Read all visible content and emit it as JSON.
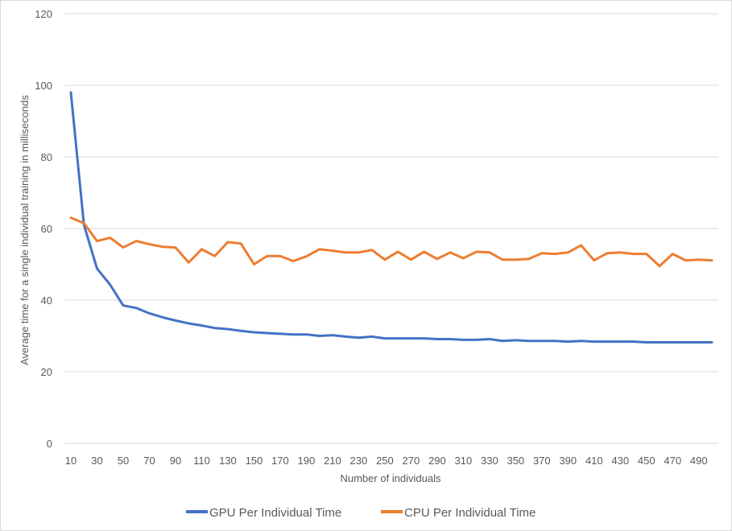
{
  "chart_data": {
    "type": "line",
    "title": "",
    "xlabel": "Number of individuals",
    "ylabel": "Average time for a single individual training in milliseconds",
    "ylim": [
      0,
      120
    ],
    "y_ticks": [
      0,
      20,
      40,
      60,
      80,
      100,
      120
    ],
    "grid": "horizontal",
    "legend_position": "bottom",
    "x": [
      10,
      20,
      30,
      40,
      50,
      60,
      70,
      80,
      90,
      100,
      110,
      120,
      130,
      140,
      150,
      160,
      170,
      180,
      190,
      200,
      210,
      220,
      230,
      240,
      250,
      260,
      270,
      280,
      290,
      300,
      310,
      320,
      330,
      340,
      350,
      360,
      370,
      380,
      390,
      400,
      410,
      420,
      430,
      440,
      450,
      460,
      470,
      480,
      490,
      500
    ],
    "x_tick_labels": [
      "10",
      "30",
      "50",
      "70",
      "90",
      "110",
      "130",
      "150",
      "170",
      "190",
      "210",
      "230",
      "250",
      "270",
      "290",
      "310",
      "330",
      "350",
      "370",
      "390",
      "410",
      "430",
      "450",
      "470",
      "490"
    ],
    "series": [
      {
        "name": "GPU Per Individual Time",
        "color": "#4472c4",
        "values": [
          98,
          61,
          48.8,
          44.3,
          38.5,
          37.8,
          36.3,
          35.2,
          34.3,
          33.5,
          32.9,
          32.2,
          31.9,
          31.4,
          31.0,
          30.8,
          30.6,
          30.4,
          30.4,
          30.0,
          30.2,
          29.8,
          29.5,
          29.8,
          29.3,
          29.3,
          29.3,
          29.3,
          29.1,
          29.1,
          28.9,
          28.9,
          29.1,
          28.6,
          28.8,
          28.6,
          28.6,
          28.6,
          28.4,
          28.6,
          28.4,
          28.4,
          28.4,
          28.4,
          28.2,
          28.2,
          28.2,
          28.2,
          28.2,
          28.2
        ]
      },
      {
        "name": "CPU Per Individual Time",
        "color": "#ed7d31",
        "values": [
          63,
          61.5,
          56.5,
          57.4,
          54.7,
          56.5,
          55.6,
          54.9,
          54.7,
          50.5,
          54.2,
          52.3,
          56.2,
          55.8,
          50.0,
          52.3,
          52.3,
          50.9,
          52.2,
          54.2,
          53.8,
          53.3,
          53.3,
          54.0,
          51.3,
          53.5,
          51.3,
          53.5,
          51.5,
          53.3,
          51.7,
          53.5,
          53.3,
          51.3,
          51.3,
          51.5,
          53.1,
          52.9,
          53.3,
          55.3,
          51.1,
          53.1,
          53.3,
          52.9,
          52.9,
          49.5,
          52.9,
          51.1,
          51.3,
          51.1
        ]
      }
    ]
  }
}
